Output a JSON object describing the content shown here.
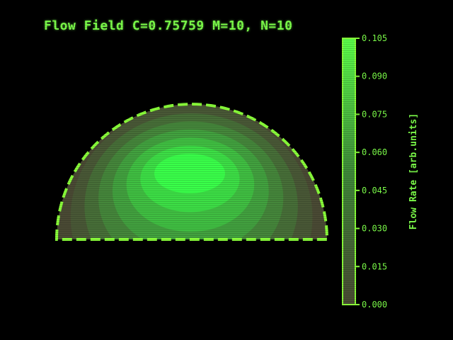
{
  "chart_data": {
    "type": "heatmap",
    "title": "Flow Field C=0.75759 M=10, N=10",
    "colorbar": {
      "label": "Flow Rate [arb.units]",
      "range": [
        0.0,
        0.105
      ],
      "ticks": [
        "0.105",
        "0.090",
        "0.075",
        "0.060",
        "0.045",
        "0.030",
        "0.015",
        "0.000"
      ],
      "tick_values": [
        0.105,
        0.09,
        0.075,
        0.06,
        0.045,
        0.03,
        0.015,
        0.0
      ],
      "position": "right"
    },
    "shape": "semicircle",
    "contour_levels": [
      0.0,
      0.015,
      0.03,
      0.045,
      0.06,
      0.075,
      0.09,
      0.105
    ],
    "max_value": 0.105
  },
  "colors": {
    "background": "#000000",
    "text": "#7dff4a",
    "outline": "#8aff3a",
    "fill_low": "#4a4a34",
    "fill_high": "#3aff4a"
  }
}
